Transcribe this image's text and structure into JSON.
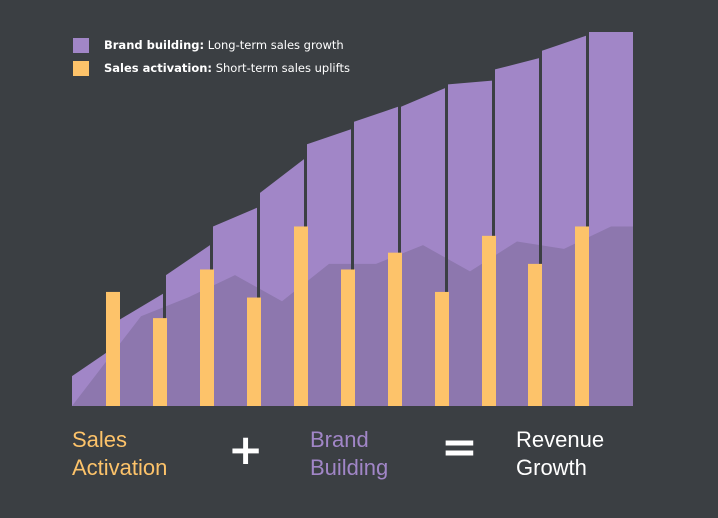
{
  "colors": {
    "background": "#3b3f43",
    "brand": "#a186c7",
    "brand_overlay": "#8d77ae",
    "activation": "#fdc36a",
    "text": "#ffffff"
  },
  "legend": [
    {
      "bold": "Brand building:",
      "text": " Long-term sales growth",
      "color": "#a186c7"
    },
    {
      "bold": "Sales activation:",
      "text": " Short-term sales uplifts",
      "color": "#fdc36a"
    }
  ],
  "formula": {
    "term1": [
      "Sales",
      "Activation"
    ],
    "op1": "+",
    "term2": [
      "Brand",
      "Building"
    ],
    "op2": "=",
    "term3": [
      "Revenue",
      "Growth"
    ]
  },
  "chart_data": {
    "type": "bar",
    "ylim": [
      0,
      100
    ],
    "series": [
      {
        "name": "Brand building",
        "type": "area",
        "values": [
          [
            8,
            16
          ],
          [
            23,
            30
          ],
          [
            35,
            43
          ],
          [
            48,
            53
          ],
          [
            57,
            66
          ],
          [
            70,
            74
          ],
          [
            76,
            80
          ],
          [
            80,
            85
          ],
          [
            86,
            87
          ],
          [
            90,
            93
          ],
          [
            95,
            99
          ],
          [
            100,
            100
          ]
        ]
      },
      {
        "name": "Sales activation",
        "type": "bar",
        "values": [
          30.5,
          23.5,
          36.5,
          29,
          48,
          36.5,
          41,
          30.5,
          45.5,
          38,
          48
        ]
      },
      {
        "name": "Activation overlay",
        "type": "area",
        "values": [
          0,
          24,
          29,
          35,
          28,
          38,
          38,
          43,
          36,
          44,
          42,
          48
        ]
      }
    ]
  }
}
